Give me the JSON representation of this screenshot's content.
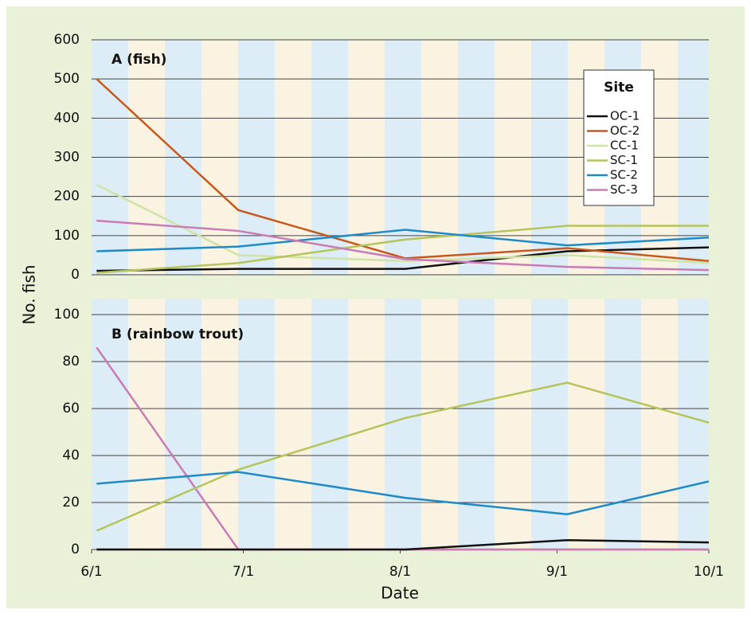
{
  "chart_data": [
    {
      "type": "line",
      "title": "A (fish)",
      "ylabel": "No. fish",
      "legend_title": "Site",
      "legend": "upper right",
      "grid": true,
      "x": [
        1,
        29,
        62,
        94,
        122
      ],
      "xlim": [
        0,
        122
      ],
      "ylim": [
        0,
        600
      ],
      "yticks": [
        0,
        100,
        200,
        300,
        400,
        500,
        600
      ],
      "series": [
        {
          "name": "OC-1",
          "color": "#111111",
          "values": [
            10,
            15,
            15,
            60,
            70
          ]
        },
        {
          "name": "OC-2",
          "color": "#c8591c",
          "values": [
            500,
            165,
            42,
            68,
            35
          ]
        },
        {
          "name": "CC-1",
          "color": "#cfe3a6",
          "values": [
            230,
            50,
            35,
            50,
            30
          ]
        },
        {
          "name": "SC-1",
          "color": "#b6c45c",
          "values": [
            5,
            30,
            90,
            125,
            125
          ]
        },
        {
          "name": "SC-2",
          "color": "#1f8ac8",
          "values": [
            60,
            72,
            115,
            75,
            95
          ]
        },
        {
          "name": "SC-3",
          "color": "#c97cb4",
          "values": [
            138,
            112,
            40,
            20,
            12
          ]
        }
      ]
    },
    {
      "type": "line",
      "title": "B (rainbow trout)",
      "xlabel": "Date",
      "grid": true,
      "x": [
        1,
        29,
        62,
        94,
        122
      ],
      "xlim": [
        0,
        122
      ],
      "xticks": [
        {
          "value": 0,
          "label": "6/1"
        },
        {
          "value": 30,
          "label": "7/1"
        },
        {
          "value": 61,
          "label": "8/1"
        },
        {
          "value": 92,
          "label": "9/1"
        },
        {
          "value": 122,
          "label": "10/1"
        }
      ],
      "ylim": [
        0,
        100
      ],
      "yticks": [
        0,
        20,
        40,
        60,
        80,
        100
      ],
      "series": [
        {
          "name": "OC-2",
          "color": "#c8591c",
          "values": [
            0,
            0,
            0,
            0,
            0
          ]
        },
        {
          "name": "CC-1",
          "color": "#cfe3a6",
          "values": [
            0,
            0,
            0,
            0,
            0
          ]
        },
        {
          "name": "SC-3",
          "color": "#c97cb4",
          "values": [
            86,
            0,
            0,
            0,
            0
          ]
        },
        {
          "name": "OC-1",
          "color": "#111111",
          "values": [
            0,
            0,
            0,
            4,
            3
          ]
        },
        {
          "name": "SC-1",
          "color": "#b6c45c",
          "values": [
            8,
            34,
            56,
            71,
            54
          ]
        },
        {
          "name": "SC-2",
          "color": "#1f8ac8",
          "values": [
            28,
            33,
            22,
            15,
            29
          ]
        }
      ]
    }
  ]
}
